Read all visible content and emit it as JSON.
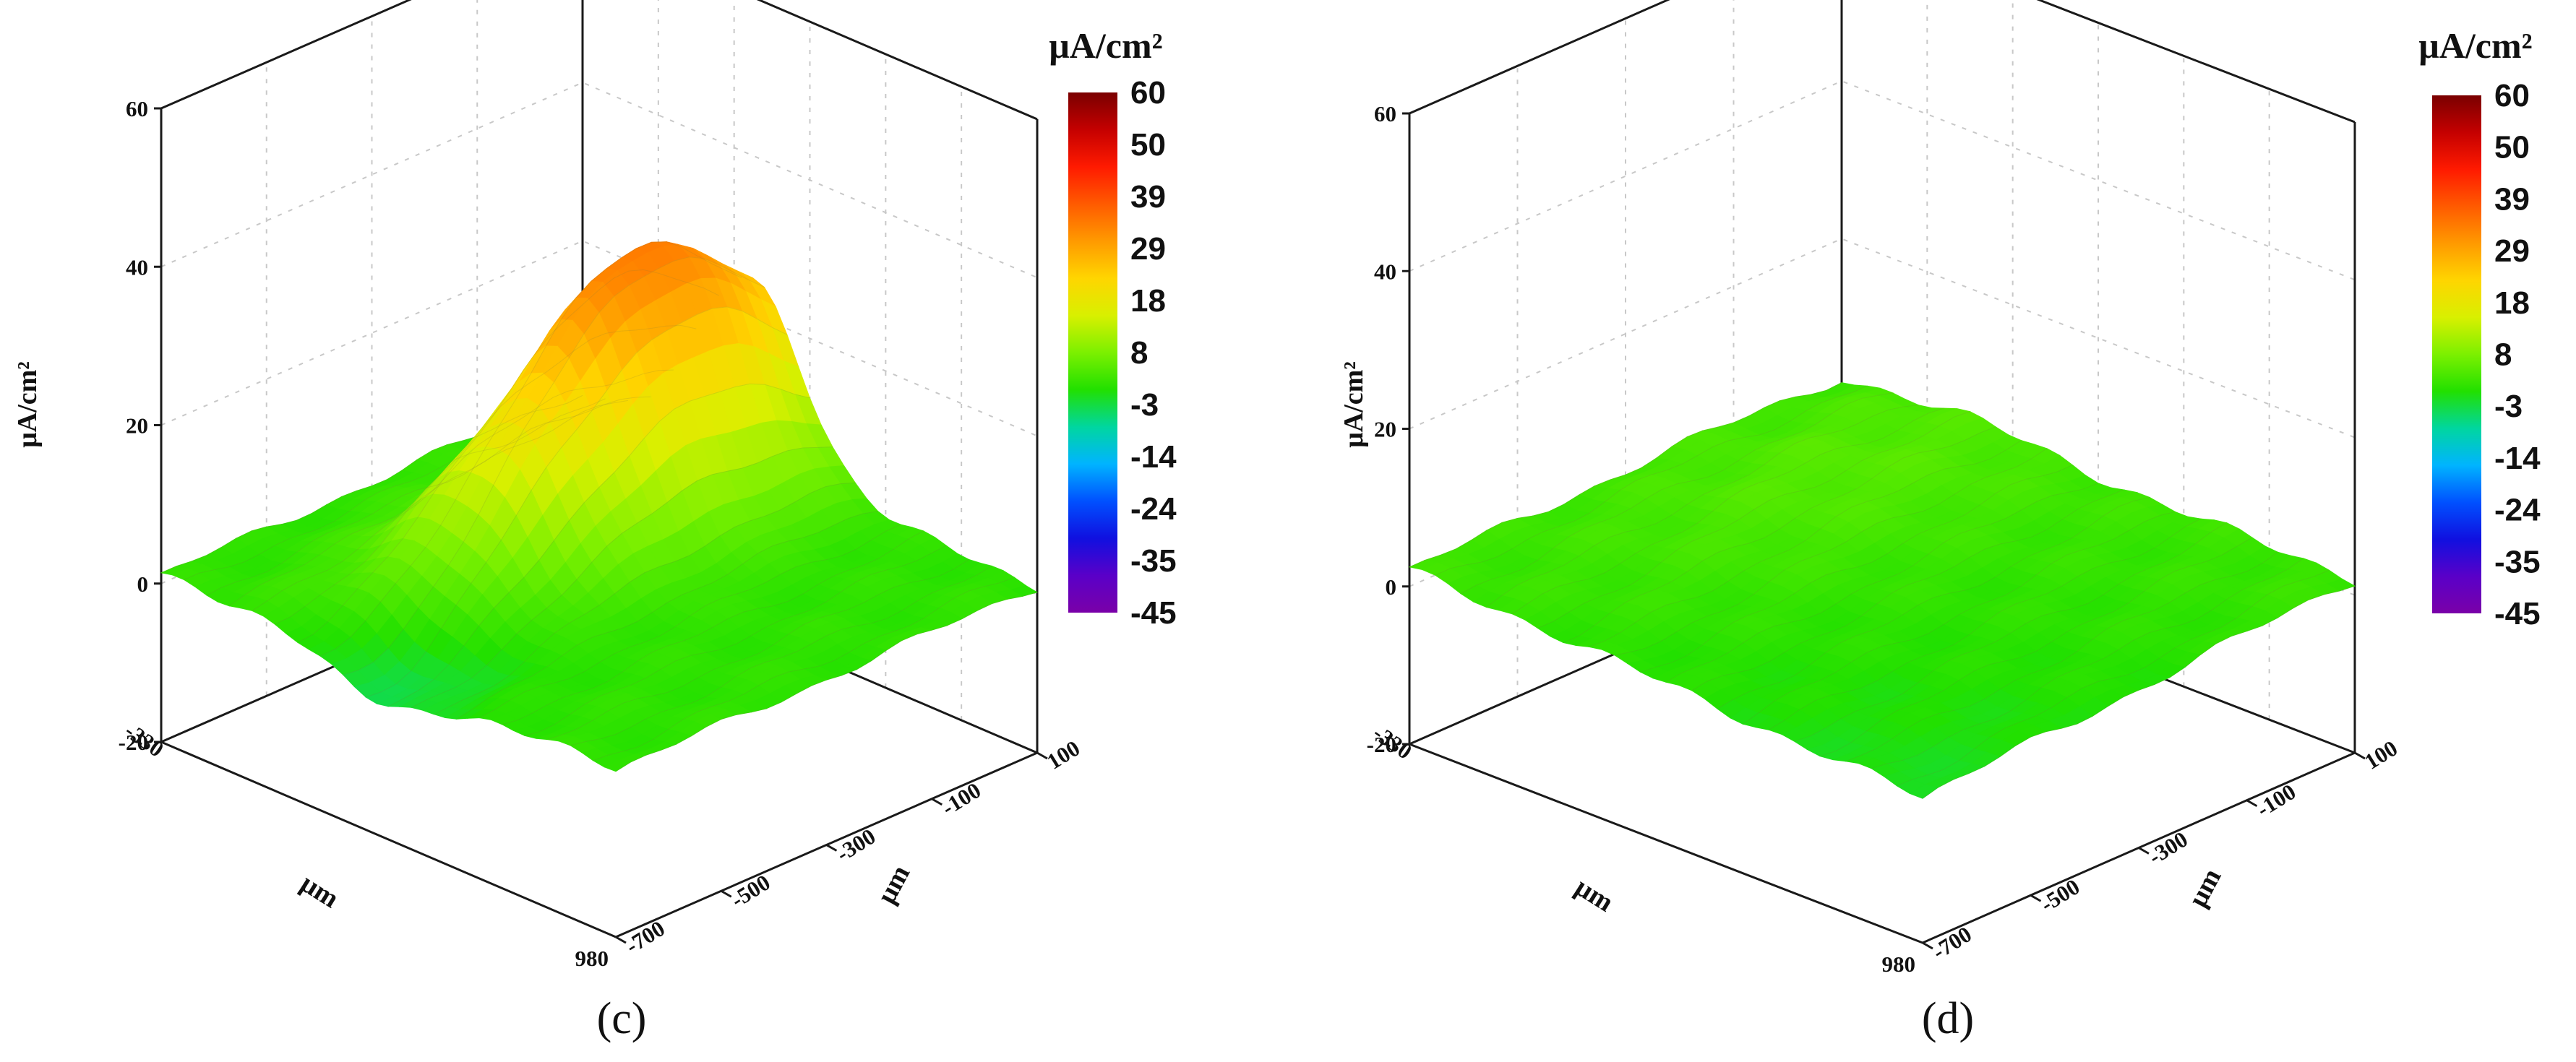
{
  "chart_data": [
    {
      "type": "surface",
      "panel_label": "(c)",
      "zlabel": "μA/cm²",
      "xlabel": "μm",
      "ylabel": "μm",
      "x_ticks": [
        "-330",
        "980"
      ],
      "y_ticks": [
        "100",
        "-100",
        "-300",
        "-500",
        "-700"
      ],
      "z_ticks": [
        "60",
        "40",
        "20",
        "0",
        "-20"
      ],
      "zlim": [
        -20,
        60
      ],
      "xlim": [
        -330,
        980
      ],
      "ylim": [
        -700,
        100
      ],
      "surface": {
        "baseline": 0,
        "peak_value": 32,
        "peak_x": 160,
        "peak_y": -100,
        "description_of_shape": "single anodic peak"
      },
      "colorbar": {
        "title": "μA/cm²",
        "labels": [
          "60",
          "50",
          "39",
          "29",
          "18",
          "8",
          "-3",
          "-14",
          "-24",
          "-35",
          "-45"
        ],
        "colors": [
          "#7a0000",
          "#c40000",
          "#ff1a00",
          "#ff5a00",
          "#ff9a00",
          "#ffd500",
          "#d8f000",
          "#7cf000",
          "#22e000",
          "#00d6a0",
          "#00b4ff",
          "#0050ff",
          "#1010e0",
          "#5a00c8",
          "#7a00a8"
        ]
      }
    },
    {
      "type": "surface",
      "panel_label": "(d)",
      "zlabel": "μA/cm²",
      "xlabel": "μm",
      "ylabel": "μm",
      "x_ticks": [
        "-330",
        "980"
      ],
      "y_ticks": [
        "100",
        "-100",
        "-300",
        "-500",
        "-700"
      ],
      "z_ticks": [
        "60",
        "40",
        "20",
        "0",
        "-20"
      ],
      "zlim": [
        -20,
        60
      ],
      "xlim": [
        -330,
        980
      ],
      "ylim": [
        -700,
        100
      ],
      "surface": {
        "baseline": 0,
        "peak_value": 6,
        "description_of_shape": "nearly flat"
      },
      "colorbar": {
        "title": "μA/cm²",
        "labels": [
          "60",
          "50",
          "39",
          "29",
          "18",
          "8",
          "-3",
          "-14",
          "-24",
          "-35",
          "-45"
        ],
        "colors": [
          "#7a0000",
          "#c40000",
          "#ff1a00",
          "#ff5a00",
          "#ff9a00",
          "#ffd500",
          "#d8f000",
          "#7cf000",
          "#22e000",
          "#00d6a0",
          "#00b4ff",
          "#0050ff",
          "#1010e0",
          "#5a00c8",
          "#7a00a8"
        ]
      }
    }
  ]
}
